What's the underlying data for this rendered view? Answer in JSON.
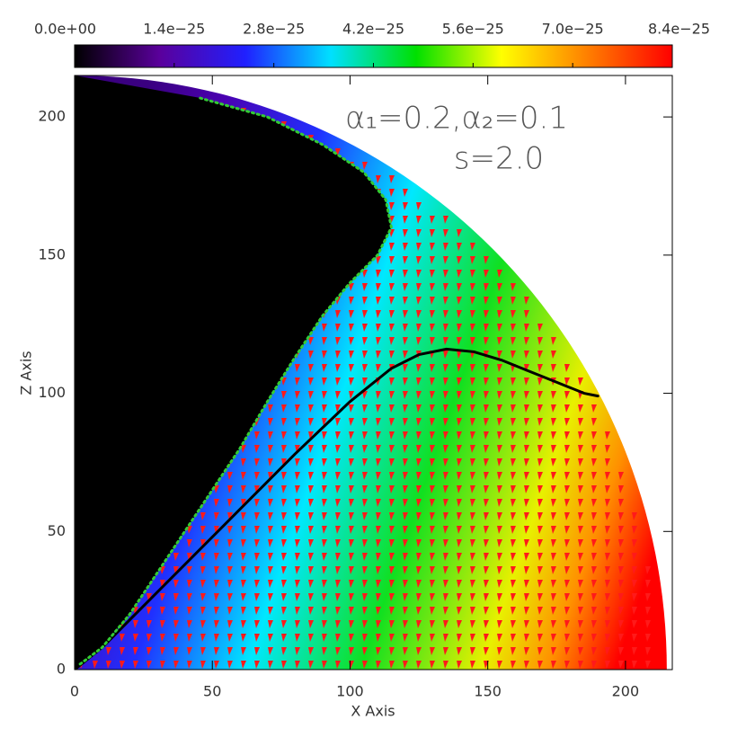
{
  "chart_data": {
    "type": "line",
    "xlabel": "X Axis",
    "ylabel": "Z Axis",
    "annotations": [
      "α₁=0.2,α₂=0.1",
      "s=2.0"
    ],
    "xlim": [
      0,
      217
    ],
    "ylim": [
      0,
      215
    ],
    "xticks": [
      0,
      50,
      100,
      150,
      200
    ],
    "yticks": [
      0,
      50,
      100,
      150,
      200
    ],
    "series": [
      {
        "color": "#000000",
        "linestyle": "solid",
        "x": [
          0,
          10,
          20,
          40,
          60,
          80,
          100,
          115,
          125,
          135,
          145,
          155,
          165,
          175,
          185,
          190
        ],
        "values": [
          0,
          8,
          18,
          38,
          58,
          78,
          97,
          109,
          114,
          116,
          115,
          112,
          108,
          104,
          100,
          99
        ]
      },
      {
        "color": "#33cc33",
        "linestyle": "dotted",
        "x": [
          2,
          10,
          20,
          30,
          40,
          50,
          60,
          70,
          80,
          90,
          100,
          110,
          115,
          113,
          105,
          90,
          70,
          45
        ],
        "values": [
          2,
          8,
          20,
          35,
          50,
          65,
          80,
          97,
          113,
          128,
          140,
          150,
          160,
          170,
          180,
          190,
          200,
          207
        ]
      }
    ],
    "colorbar": {
      "lim": [
        0,
        8.4e-25
      ],
      "colors": [
        "#000000",
        "#5a009c",
        "#2020ff",
        "#00e0ff",
        "#00e000",
        "#ffff00",
        "#ff8000",
        "#ff0000"
      ],
      "ticks": [
        {
          "value": 0,
          "label": "0.0e+00"
        },
        {
          "value": 1.4e-25,
          "label": "1.4e−25"
        },
        {
          "value": 2.8e-25,
          "label": "2.8e−25"
        },
        {
          "value": 4.2e-25,
          "label": "4.2e−25"
        },
        {
          "value": 5.6e-25,
          "label": "5.6e−25"
        },
        {
          "value": 7e-25,
          "label": "7.0e−25"
        },
        {
          "value": 8.4e-25,
          "label": "8.4e−25"
        }
      ]
    }
  }
}
